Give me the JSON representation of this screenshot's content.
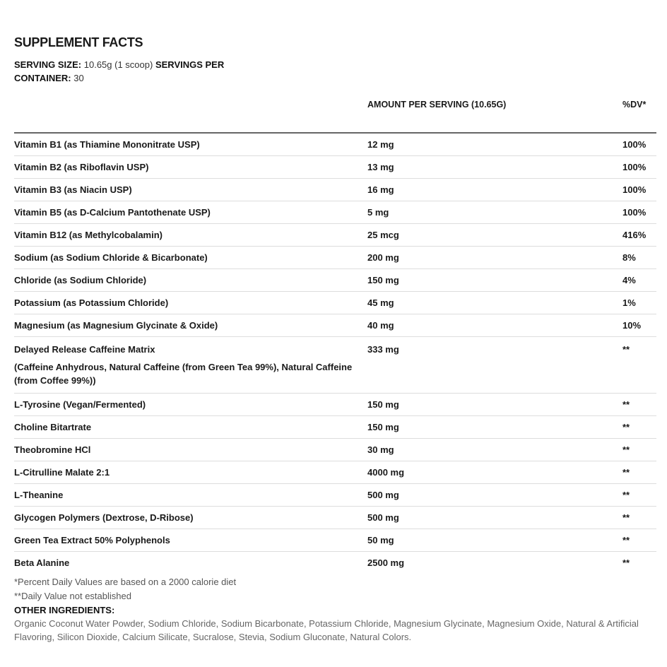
{
  "title": "SUPPLEMENT FACTS",
  "serving_size_label": "SERVING SIZE:",
  "serving_size_value": "10.65g (1 scoop)",
  "servings_label": "SERVINGS PER CONTAINER:",
  "servings_value": "30",
  "columns": {
    "name": "",
    "amount": "AMOUNT PER SERVING (10.65G)",
    "dv": "%DV*"
  },
  "rows": [
    {
      "name": "Vitamin B1 (as Thiamine Mononitrate USP)",
      "amount": "12 mg",
      "dv": "100%"
    },
    {
      "name": "Vitamin B2 (as Riboflavin USP)",
      "amount": "13 mg",
      "dv": "100%"
    },
    {
      "name": "Vitamin B3 (as Niacin USP)",
      "amount": "16 mg",
      "dv": "100%"
    },
    {
      "name": "Vitamin B5 (as D-Calcium Pantothenate USP)",
      "amount": "5 mg",
      "dv": "100%"
    },
    {
      "name": "Vitamin B12 (as Methylcobalamin)",
      "amount": "25 mcg",
      "dv": "416%"
    },
    {
      "name": "Sodium (as Sodium Chloride & Bicarbonate)",
      "amount": "200 mg",
      "dv": "8%"
    },
    {
      "name": "Chloride (as Sodium Chloride)",
      "amount": "150 mg",
      "dv": "4%"
    },
    {
      "name": "Potassium (as Potassium Chloride)",
      "amount": "45 mg",
      "dv": "1%"
    },
    {
      "name": "Magnesium (as Magnesium Glycinate & Oxide)",
      "amount": "40 mg",
      "dv": "10%"
    },
    {
      "name": "Delayed Release Caffeine Matrix",
      "sub": "(Caffeine Anhydrous, Natural Caffeine (from Green Tea 99%), Natural Caffeine (from Coffee 99%))",
      "amount": "333 mg",
      "dv": "**"
    },
    {
      "name": "L-Tyrosine (Vegan/Fermented)",
      "amount": "150 mg",
      "dv": "**"
    },
    {
      "name": "Choline Bitartrate",
      "amount": "150 mg",
      "dv": "**"
    },
    {
      "name": "Theobromine HCl",
      "amount": "30 mg",
      "dv": "**"
    },
    {
      "name": "L-Citrulline Malate 2:1",
      "amount": "4000 mg",
      "dv": "**"
    },
    {
      "name": "L-Theanine",
      "amount": "500 mg",
      "dv": "**"
    },
    {
      "name": "Glycogen Polymers (Dextrose, D-Ribose)",
      "amount": "500 mg",
      "dv": "**"
    },
    {
      "name": "Green Tea Extract 50% Polyphenols",
      "amount": "50 mg",
      "dv": "**"
    },
    {
      "name": "Beta Alanine",
      "amount": "2500 mg",
      "dv": "**"
    }
  ],
  "footnotes": [
    "*Percent Daily Values are based on a 2000 calorie diet",
    "**Daily Value not established"
  ],
  "other_ingredients_label": "OTHER INGREDIENTS:",
  "other_ingredients": "Organic Coconut Water Powder, Sodium Chloride, Sodium Bicarbonate, Potassium Chloride, Magnesium Glycinate, Magnesium Oxide, Natural & Artificial Flavoring, Silicon Dioxide, Calcium Silicate, Sucralose, Stevia, Sodium Gluconate, Natural Colors."
}
